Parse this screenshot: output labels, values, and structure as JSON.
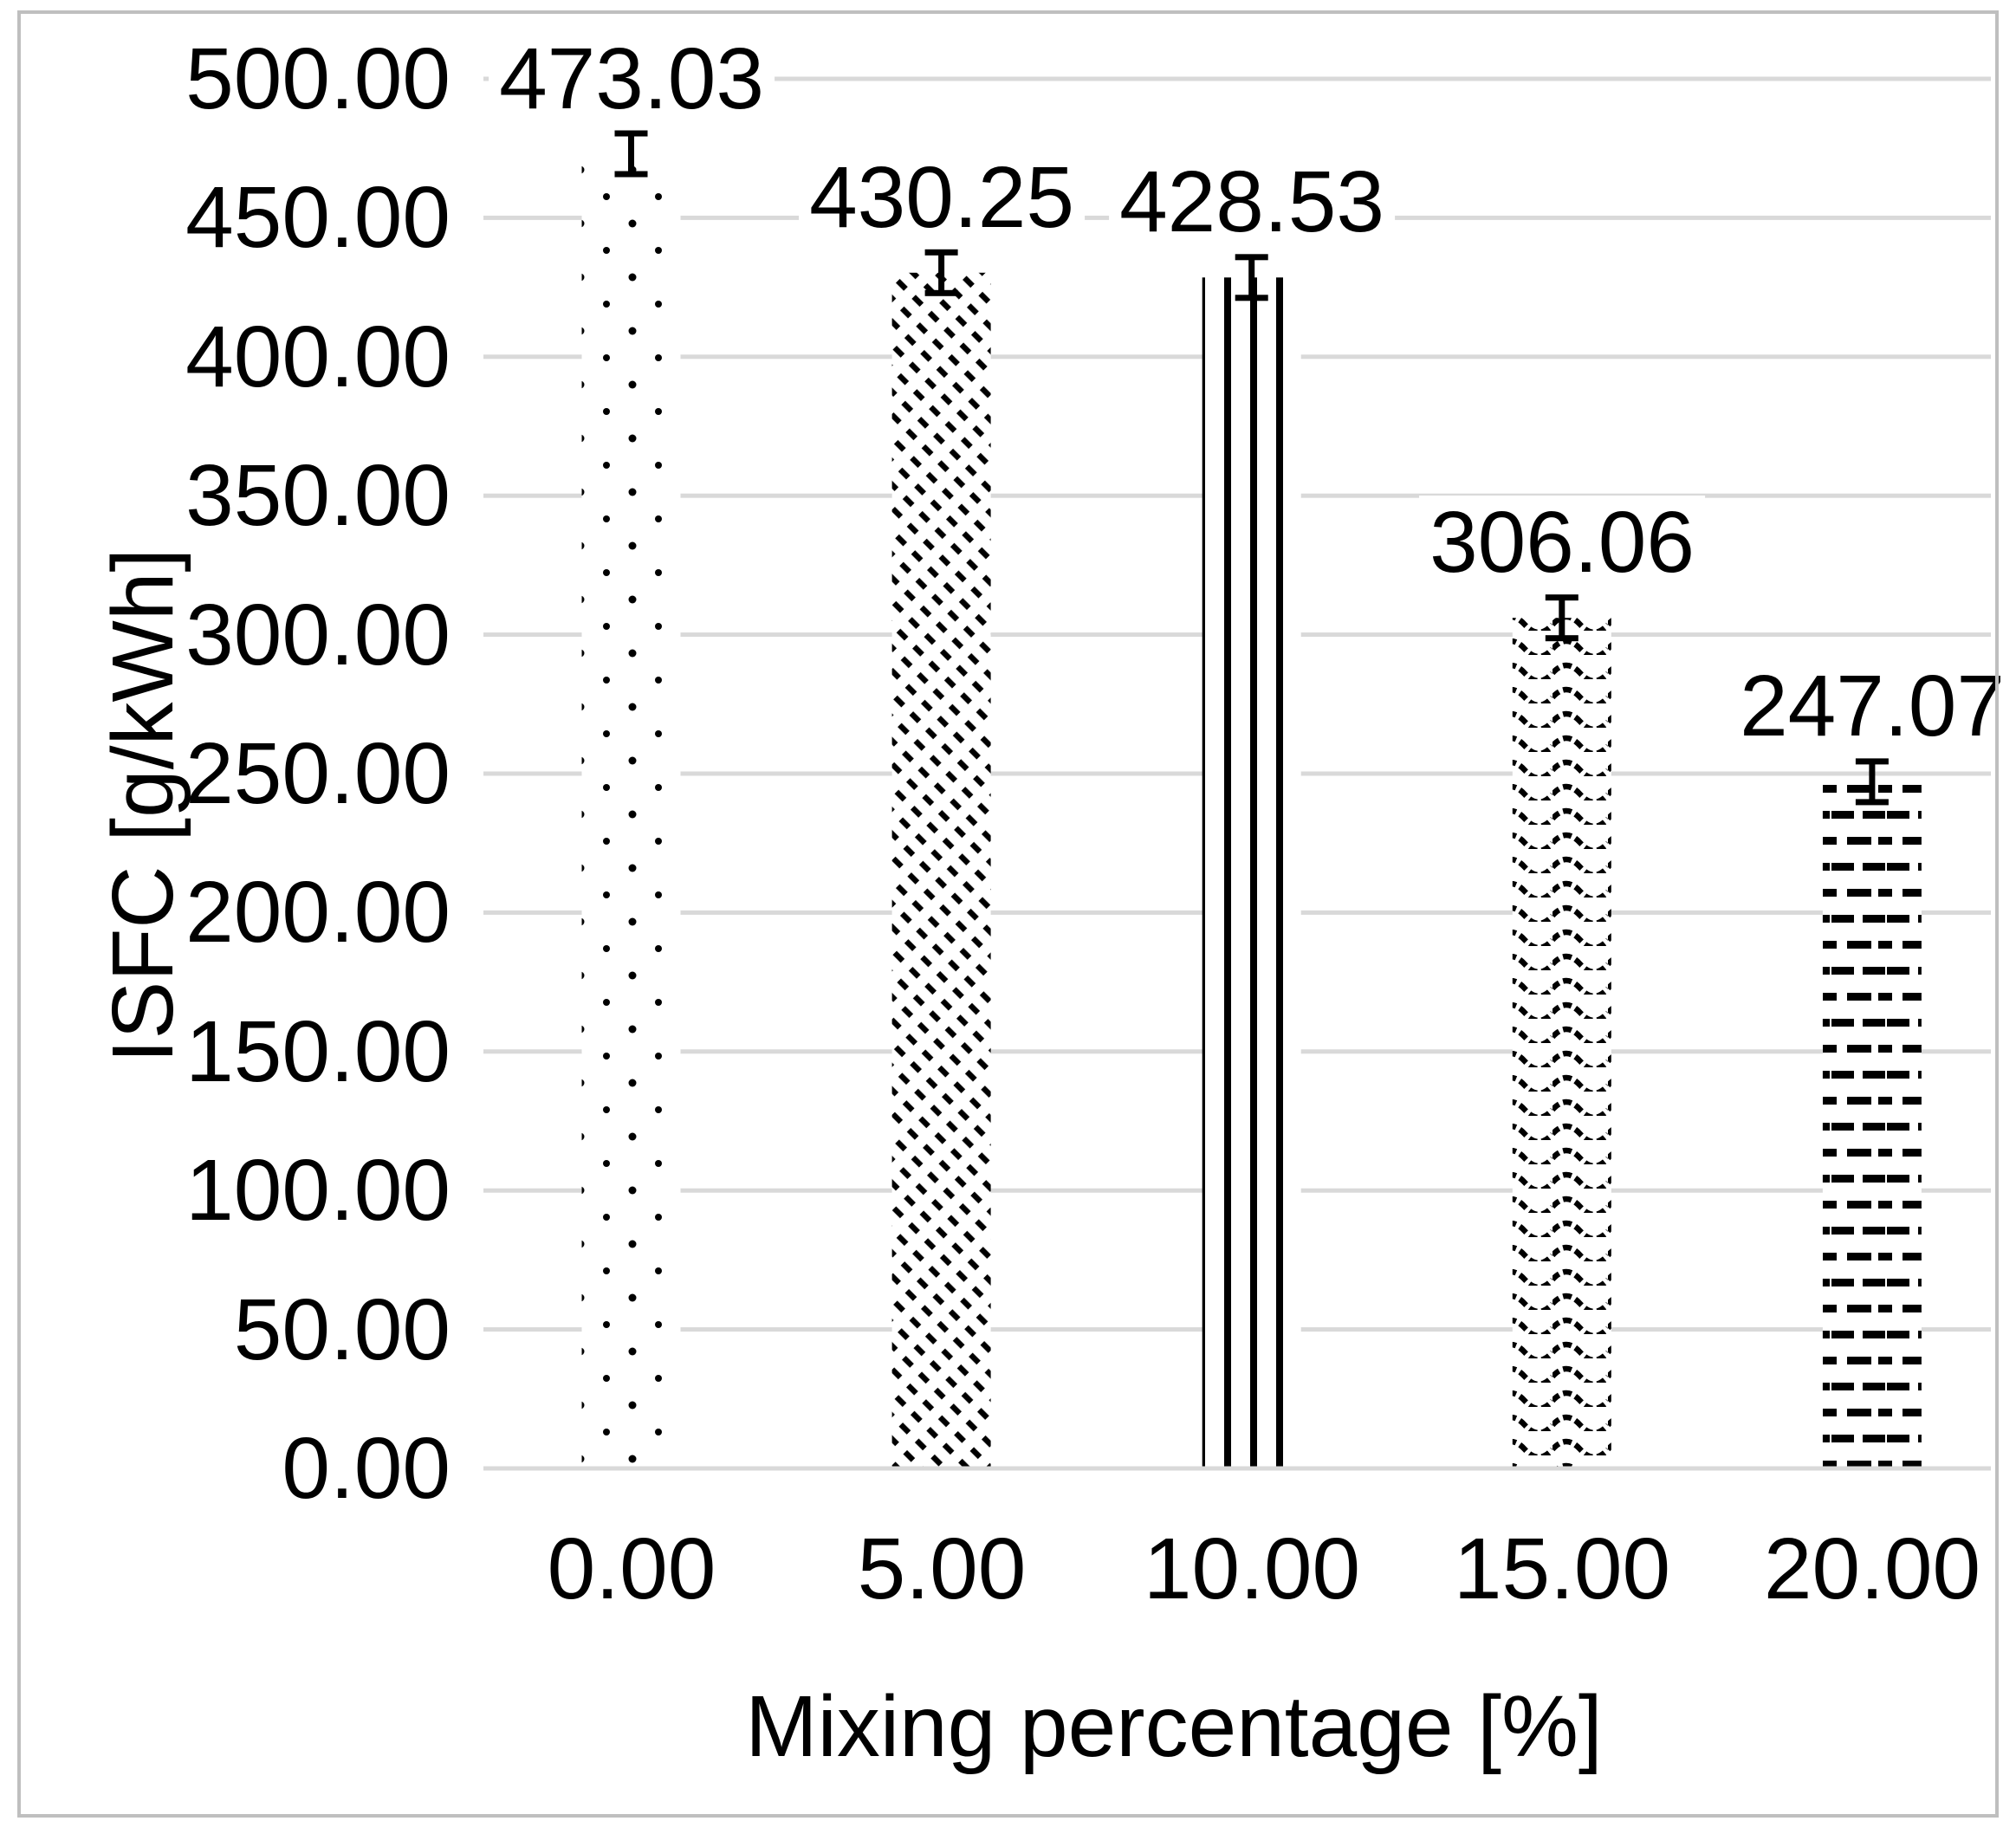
{
  "chart_data": {
    "type": "bar",
    "title": "",
    "xlabel": "Mixing percentage [%]",
    "ylabel": "ISFC [g/kWh]",
    "categories": [
      "0.00",
      "5.00",
      "10.00",
      "15.00",
      "20.00"
    ],
    "values": [
      473.03,
      430.25,
      428.53,
      306.06,
      247.07
    ],
    "data_labels": [
      "473.03",
      "430.25",
      "428.53",
      "306.06",
      "247.07"
    ],
    "bar_patterns": [
      "dots",
      "diagonal-dashed-lines",
      "vertical-lines",
      "waves",
      "dash-dot-rows"
    ],
    "error_bars": {
      "visible": true,
      "approx_half_range": 7.5
    },
    "ylim": [
      0,
      500
    ],
    "ytick_step": 50,
    "ytick_labels": [
      "0.00",
      "50.00",
      "100.00",
      "150.00",
      "200.00",
      "250.00",
      "300.00",
      "350.00",
      "400.00",
      "450.00",
      "500.00"
    ],
    "grid": true,
    "legend": false,
    "colors": {
      "bar_foreground": "#000000",
      "bar_background": "#ffffff",
      "gridline": "#d9d9d9",
      "chart_border": "#bfbfbf",
      "text": "#000000",
      "background": "#ffffff"
    }
  }
}
